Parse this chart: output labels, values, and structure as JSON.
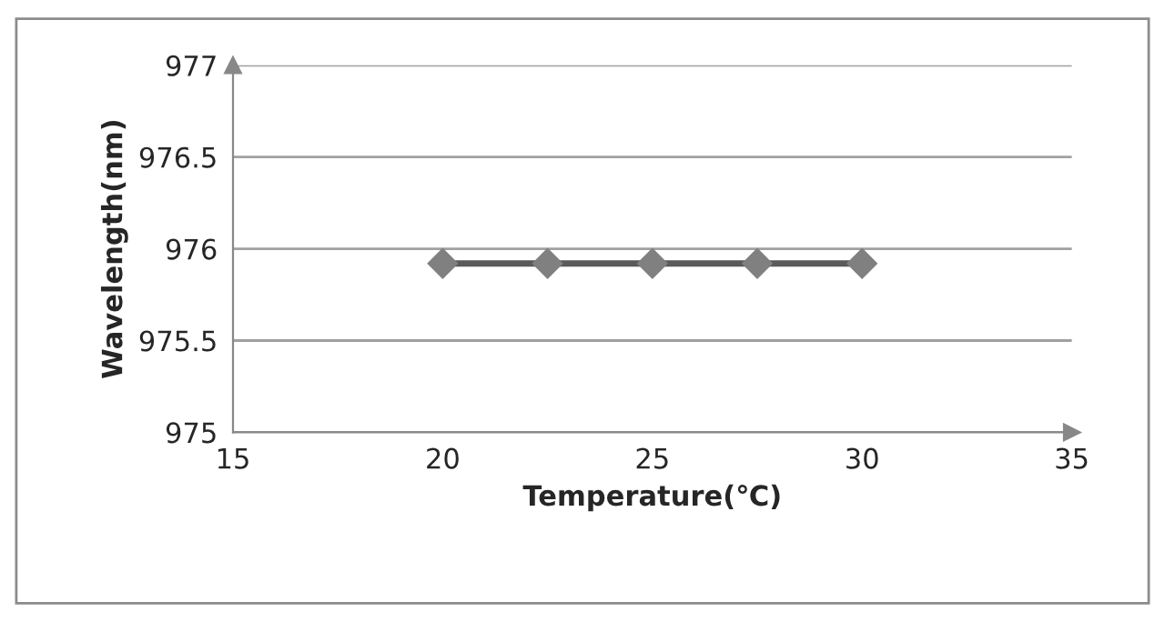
{
  "chart_data": {
    "type": "line",
    "xlabel": "Temperature(℃)",
    "ylabel": "Wavelength(nm)",
    "x": [
      20,
      22.5,
      25,
      27.5,
      30
    ],
    "series": [
      {
        "color": "#5a5a5a",
        "values": [
          975.92,
          975.92,
          975.92,
          975.92,
          975.92
        ]
      }
    ],
    "marker": "diamond",
    "line_style": "solid",
    "xlim": [
      15,
      35
    ],
    "xticks": [
      15,
      20,
      25,
      30,
      35
    ],
    "ylim": [
      975,
      977
    ],
    "yticks": [
      975,
      975.5,
      976,
      976.5,
      977
    ],
    "grid": "y",
    "legend": false
  }
}
